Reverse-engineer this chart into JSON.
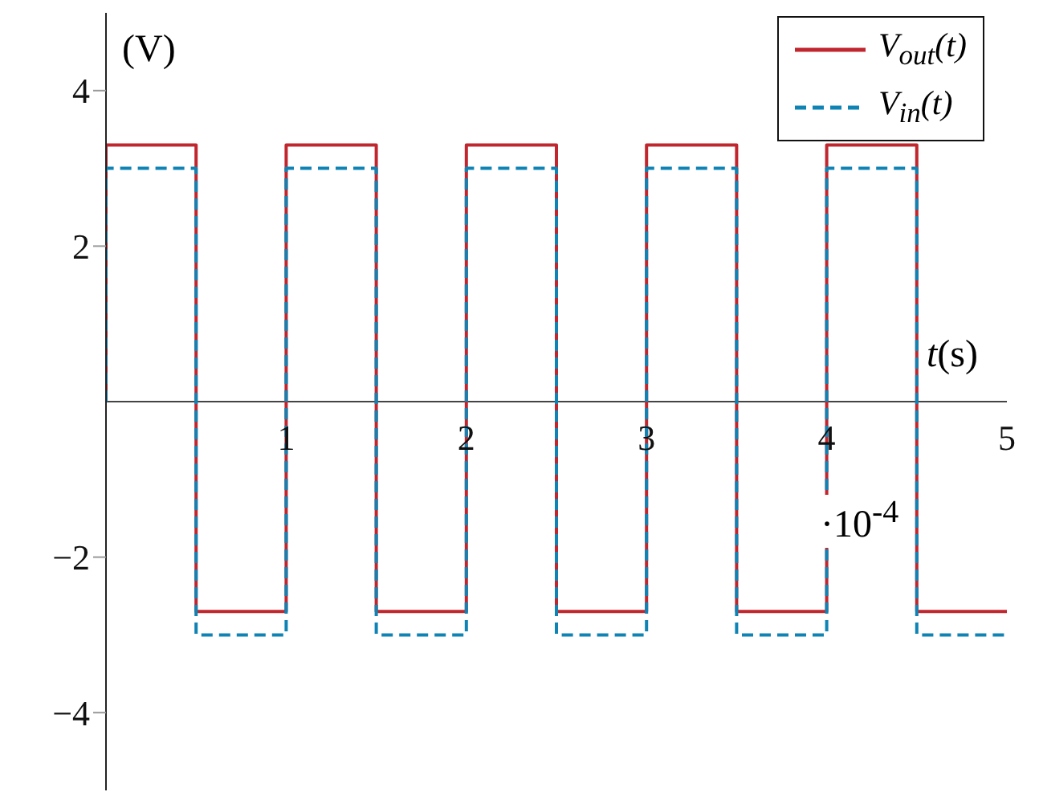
{
  "chart_data": {
    "type": "line",
    "ylabel": "(V)",
    "xlabel": "t(s)",
    "annotations": [
      "·10$^{-4}$"
    ],
    "x": [
      0,
      0,
      0.5,
      0.5,
      1,
      1,
      1.5,
      1.5,
      2,
      2,
      2.5,
      2.5,
      3,
      3,
      3.5,
      3.5,
      4,
      4,
      4.5,
      4.5,
      5
    ],
    "series": [
      {
        "name": "V$_{out}$(t)",
        "color": "#c0262d",
        "line_style": "solid",
        "values": [
          0,
          3.3,
          3.3,
          -2.7,
          -2.7,
          3.3,
          3.3,
          -2.7,
          -2.7,
          3.3,
          3.3,
          -2.7,
          -2.7,
          3.3,
          3.3,
          -2.7,
          -2.7,
          3.3,
          3.3,
          -2.7,
          -2.7
        ]
      },
      {
        "name": "V$_{in}$(t)",
        "color": "#0f83b4",
        "line_style": "dashed",
        "values": [
          0,
          3,
          3,
          -3,
          -3,
          3,
          3,
          -3,
          -3,
          3,
          3,
          -3,
          -3,
          3,
          3,
          -3,
          -3,
          3,
          3,
          -3,
          -3
        ]
      }
    ],
    "xlim": [
      0,
      5
    ],
    "xticks": [
      1,
      2,
      3,
      4,
      5
    ],
    "ylim": [
      -5,
      5
    ],
    "yticks": [
      -4,
      -2,
      2,
      4
    ],
    "grid": false,
    "legend": "top right",
    "marker": "none"
  }
}
